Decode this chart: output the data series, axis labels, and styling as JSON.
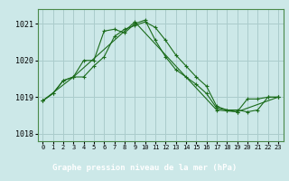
{
  "title": "Graphe pression niveau de la mer (hPa)",
  "bg_color": "#cce8e8",
  "grid_color": "#aacccc",
  "line_color": "#1a6b1a",
  "marker_color": "#1a6b1a",
  "title_bg": "#2a6b2a",
  "title_fg": "#ffffff",
  "xlim": [
    -0.5,
    23.5
  ],
  "ylim": [
    1017.8,
    1021.4
  ],
  "yticks": [
    1018,
    1019,
    1020,
    1021
  ],
  "xticks": [
    0,
    1,
    2,
    3,
    4,
    5,
    6,
    7,
    8,
    9,
    10,
    11,
    12,
    13,
    14,
    15,
    16,
    17,
    18,
    19,
    20,
    21,
    22,
    23
  ],
  "series1": {
    "x": [
      0,
      1,
      2,
      3,
      4,
      5,
      6,
      7,
      8,
      9,
      10,
      11,
      12,
      13,
      14,
      15,
      16,
      17,
      18,
      19,
      20,
      21,
      22,
      23
    ],
    "y": [
      1018.9,
      1019.1,
      1019.45,
      1019.55,
      1019.55,
      1019.85,
      1020.1,
      1020.65,
      1020.85,
      1020.95,
      1021.05,
      1020.9,
      1020.55,
      1020.15,
      1019.85,
      1019.55,
      1019.3,
      1018.75,
      1018.65,
      1018.65,
      1018.6,
      1018.65,
      1019.0,
      1019.0
    ]
  },
  "series2": {
    "x": [
      0,
      1,
      2,
      3,
      4,
      5,
      6,
      7,
      8,
      9,
      10,
      11,
      12,
      13,
      14,
      15,
      16,
      17,
      18,
      19,
      20,
      21,
      22,
      23
    ],
    "y": [
      1018.9,
      1019.1,
      1019.45,
      1019.55,
      1020.0,
      1020.0,
      1020.8,
      1020.85,
      1020.75,
      1021.0,
      1021.1,
      1020.55,
      1020.1,
      1019.75,
      1019.55,
      1019.35,
      1019.1,
      1018.7,
      1018.65,
      1018.6,
      1018.95,
      1018.95,
      1019.0,
      1019.0
    ]
  },
  "series3": {
    "x": [
      0,
      3,
      9,
      17,
      19,
      23
    ],
    "y": [
      1018.9,
      1019.55,
      1021.05,
      1018.65,
      1018.6,
      1019.0
    ]
  }
}
